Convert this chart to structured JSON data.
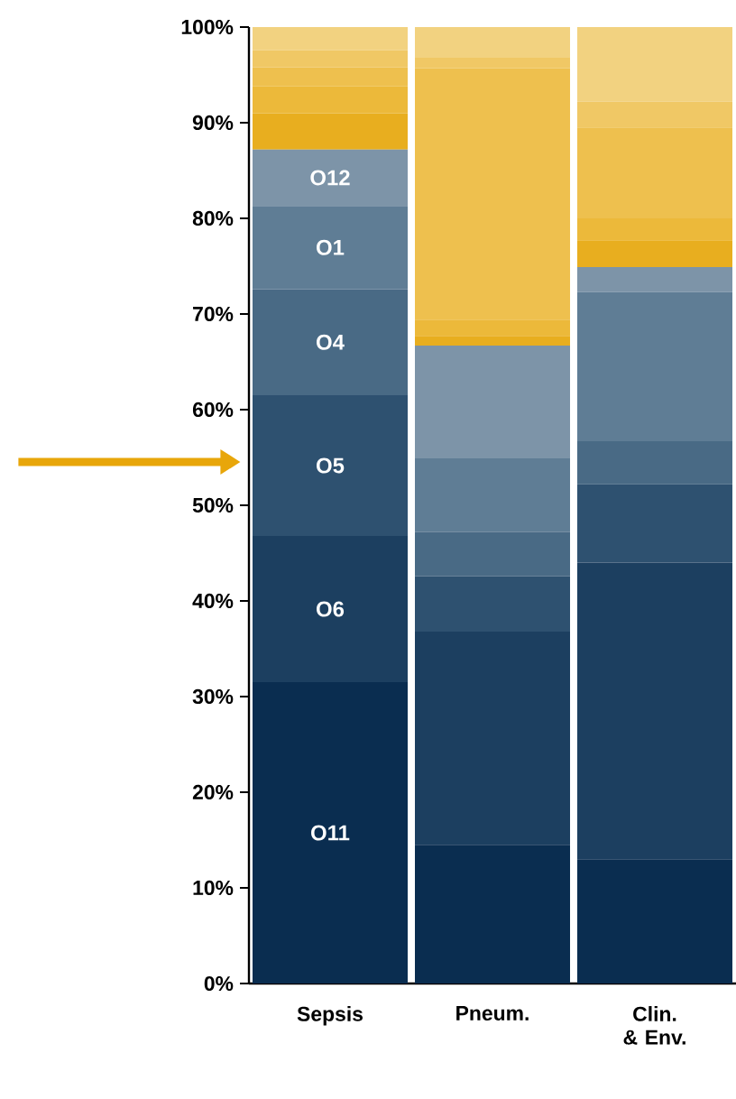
{
  "chart_data": {
    "type": "bar",
    "stacked": true,
    "categories": [
      "Sepsis",
      "Pneum.",
      "Clin. & Env."
    ],
    "series": [
      {
        "color": "#0a2d50",
        "values": [
          31.5,
          14.5,
          13.0
        ],
        "value_labels": [
          "O11",
          null,
          null
        ]
      },
      {
        "color": "#1c3f60",
        "values": [
          15.3,
          22.3,
          31.0
        ],
        "value_labels": [
          "O6",
          null,
          null
        ]
      },
      {
        "color": "#2e5170",
        "values": [
          14.7,
          5.8,
          8.2
        ],
        "value_labels": [
          "O5",
          null,
          null
        ]
      },
      {
        "color": "#496a85",
        "values": [
          11.1,
          4.6,
          4.5
        ],
        "value_labels": [
          "O4",
          null,
          null
        ]
      },
      {
        "color": "#5f7d95",
        "values": [
          8.7,
          7.7,
          15.6
        ],
        "value_labels": [
          "O1",
          null,
          null
        ]
      },
      {
        "color": "#7d94a8",
        "values": [
          5.9,
          11.8,
          2.6
        ],
        "value_labels": [
          "O12",
          null,
          null
        ]
      },
      {
        "color": "#e8ae1f",
        "values": [
          3.8,
          1.0,
          2.8
        ]
      },
      {
        "color": "#ecb93a",
        "values": [
          2.8,
          1.7,
          2.3
        ]
      },
      {
        "color": "#eec04e",
        "values": [
          2.0,
          26.3,
          9.5
        ]
      },
      {
        "color": "#f0c865",
        "values": [
          1.8,
          1.1,
          2.7
        ]
      },
      {
        "color": "#f2d280",
        "values": [
          2.4,
          3.2,
          7.8
        ]
      }
    ],
    "ylim": [
      0,
      100
    ],
    "yticks": [
      {
        "value": 0,
        "label": "0%"
      },
      {
        "value": 10,
        "label": "10%"
      },
      {
        "value": 20,
        "label": "20%"
      },
      {
        "value": 30,
        "label": "30%"
      },
      {
        "value": 40,
        "label": "40%"
      },
      {
        "value": 50,
        "label": "50%"
      },
      {
        "value": 60,
        "label": "60%"
      },
      {
        "value": 70,
        "label": "70%"
      },
      {
        "value": 80,
        "label": "80%"
      },
      {
        "value": 90,
        "label": "90%"
      },
      {
        "value": 100,
        "label": "100%"
      }
    ],
    "grid": false
  }
}
